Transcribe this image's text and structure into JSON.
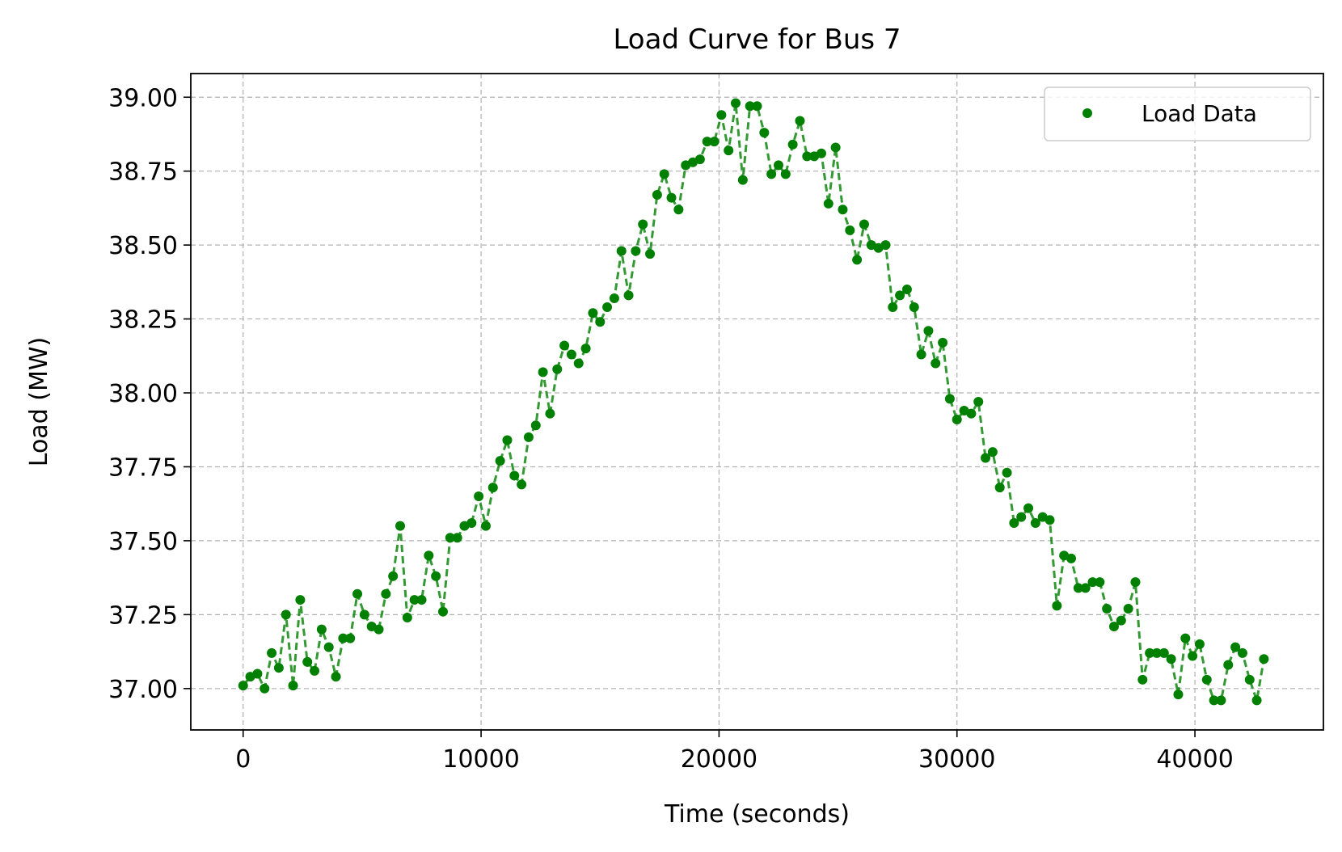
{
  "chart_data": {
    "type": "line",
    "title": "Load Curve for Bus 7",
    "xlabel": "Time (seconds)",
    "ylabel": "Load (MW)",
    "xlim": [
      -2200,
      45400
    ],
    "ylim": [
      36.86,
      39.08
    ],
    "xticks": [
      0,
      10000,
      20000,
      30000,
      40000
    ],
    "xtick_labels": [
      "0",
      "10000",
      "20000",
      "30000",
      "40000"
    ],
    "yticks": [
      37.0,
      37.25,
      37.5,
      37.75,
      38.0,
      38.25,
      38.5,
      38.75,
      39.0
    ],
    "ytick_labels": [
      "37.00",
      "37.25",
      "37.50",
      "37.75",
      "38.00",
      "38.25",
      "38.50",
      "38.75",
      "39.00"
    ],
    "grid": true,
    "legend_position": "top-right",
    "color": "#008000",
    "line_style": "dashed",
    "marker": "circle",
    "series": [
      {
        "name": "Load Data",
        "x": [
          0,
          300,
          600,
          900,
          1200,
          1500,
          1800,
          2100,
          2400,
          2700,
          3000,
          3300,
          3600,
          3900,
          4200,
          4500,
          4800,
          5100,
          5400,
          5700,
          6000,
          6300,
          6600,
          6900,
          7200,
          7500,
          7800,
          8100,
          8400,
          8700,
          9000,
          9300,
          9600,
          9900,
          10200,
          10500,
          10800,
          11100,
          11400,
          11700,
          12000,
          12300,
          12600,
          12900,
          13200,
          13500,
          13800,
          14100,
          14400,
          14700,
          15000,
          15300,
          15600,
          15900,
          16200,
          16500,
          16800,
          17100,
          17400,
          17700,
          18000,
          18300,
          18600,
          18900,
          19200,
          19500,
          19800,
          20100,
          20400,
          20700,
          21000,
          21300,
          21600,
          21900,
          22200,
          22500,
          22800,
          23100,
          23400,
          23700,
          24000,
          24300,
          24600,
          24900,
          25200,
          25500,
          25800,
          26100,
          26400,
          26700,
          27000,
          27300,
          27600,
          27900,
          28200,
          28500,
          28800,
          29100,
          29400,
          29700,
          30000,
          30300,
          30600,
          30900,
          31200,
          31500,
          31800,
          32100,
          32400,
          32700,
          33000,
          33300,
          33600,
          33900,
          34200,
          34500,
          34800,
          35100,
          35400,
          35700,
          36000,
          36300,
          36600,
          36900,
          37200,
          37500,
          37800,
          38100,
          38400,
          38700,
          39000,
          39300,
          39600,
          39900,
          40200,
          40500,
          40800,
          41100,
          41400,
          41700,
          42000,
          42300,
          42600,
          42900
        ],
        "values": [
          37.01,
          37.04,
          37.05,
          37.0,
          37.12,
          37.07,
          37.25,
          37.01,
          37.3,
          37.09,
          37.06,
          37.2,
          37.14,
          37.04,
          37.17,
          37.17,
          37.32,
          37.25,
          37.21,
          37.2,
          37.32,
          37.38,
          37.55,
          37.24,
          37.3,
          37.3,
          37.45,
          37.38,
          37.26,
          37.51,
          37.51,
          37.55,
          37.56,
          37.65,
          37.55,
          37.68,
          37.77,
          37.84,
          37.72,
          37.69,
          37.85,
          37.89,
          38.07,
          37.93,
          38.08,
          38.16,
          38.13,
          38.1,
          38.15,
          38.27,
          38.24,
          38.29,
          38.32,
          38.48,
          38.33,
          38.48,
          38.57,
          38.47,
          38.67,
          38.74,
          38.66,
          38.62,
          38.77,
          38.78,
          38.79,
          38.85,
          38.85,
          38.94,
          38.82,
          38.98,
          38.72,
          38.97,
          38.97,
          38.88,
          38.74,
          38.77,
          38.74,
          38.84,
          38.92,
          38.8,
          38.8,
          38.81,
          38.64,
          38.83,
          38.62,
          38.55,
          38.45,
          38.57,
          38.5,
          38.49,
          38.5,
          38.29,
          38.33,
          38.35,
          38.29,
          38.13,
          38.21,
          38.1,
          38.17,
          37.98,
          37.91,
          37.94,
          37.93,
          37.97,
          37.78,
          37.8,
          37.68,
          37.73,
          37.56,
          37.58,
          37.61,
          37.56,
          37.58,
          37.57,
          37.28,
          37.45,
          37.44,
          37.34,
          37.34,
          37.36,
          37.36,
          37.27,
          37.21,
          37.23,
          37.27,
          37.36,
          37.03,
          37.12,
          37.12,
          37.12,
          37.1,
          36.98,
          37.17,
          37.11,
          37.15,
          37.03,
          36.96,
          36.96,
          37.08,
          37.14,
          37.12,
          37.03,
          36.96,
          37.1
        ]
      }
    ]
  }
}
